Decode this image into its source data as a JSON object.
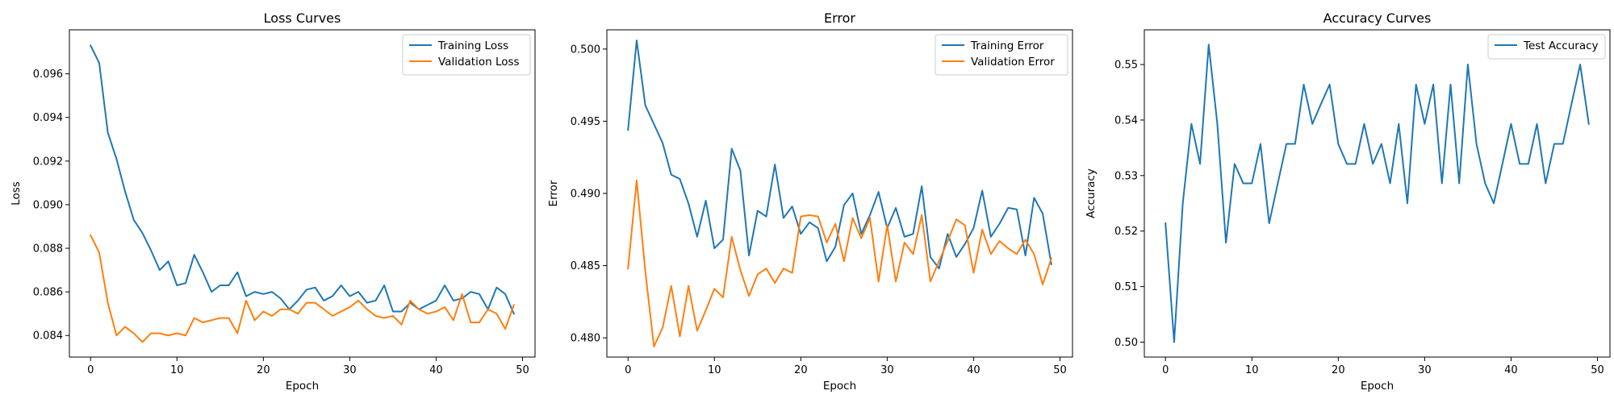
{
  "colors": {
    "blue": "#1f77b4",
    "orange": "#ff7f0e"
  },
  "chart_data": [
    {
      "type": "line",
      "title": "Loss Curves",
      "xlabel": "Epoch",
      "ylabel": "Loss",
      "xlim": [
        -2.45,
        51.45
      ],
      "ylim": [
        0.08301,
        0.09802
      ],
      "xticks": [
        0,
        10,
        20,
        30,
        40,
        50
      ],
      "xtick_labels": [
        "0",
        "10",
        "20",
        "30",
        "40",
        "50"
      ],
      "yticks": [
        0.084,
        0.086,
        0.088,
        0.09,
        0.092,
        0.094,
        0.096
      ],
      "ytick_labels": [
        "0.084",
        "0.086",
        "0.088",
        "0.090",
        "0.092",
        "0.094",
        "0.096"
      ],
      "legend_position": "upper right",
      "grid": false,
      "x": [
        0,
        1,
        2,
        3,
        4,
        5,
        6,
        7,
        8,
        9,
        10,
        11,
        12,
        13,
        14,
        15,
        16,
        17,
        18,
        19,
        20,
        21,
        22,
        23,
        24,
        25,
        26,
        27,
        28,
        29,
        30,
        31,
        32,
        33,
        34,
        35,
        36,
        37,
        38,
        39,
        40,
        41,
        42,
        43,
        44,
        45,
        46,
        47,
        48,
        49
      ],
      "series": [
        {
          "name": "Training Loss",
          "color": "#1f77b4",
          "values": [
            0.0973,
            0.0965,
            0.0933,
            0.0921,
            0.0906,
            0.0893,
            0.0887,
            0.0879,
            0.087,
            0.0874,
            0.0863,
            0.0864,
            0.0877,
            0.0869,
            0.086,
            0.0863,
            0.0863,
            0.0869,
            0.0858,
            0.086,
            0.0859,
            0.086,
            0.0857,
            0.0852,
            0.0856,
            0.0861,
            0.0862,
            0.0856,
            0.0858,
            0.0863,
            0.0858,
            0.086,
            0.0855,
            0.0856,
            0.0863,
            0.0851,
            0.0851,
            0.0855,
            0.0852,
            0.0854,
            0.0856,
            0.0863,
            0.0856,
            0.0857,
            0.086,
            0.0859,
            0.0852,
            0.0862,
            0.0859,
            0.085
          ]
        },
        {
          "name": "Validation Loss",
          "color": "#ff7f0e",
          "values": [
            0.0886,
            0.0878,
            0.0855,
            0.084,
            0.0844,
            0.0841,
            0.0837,
            0.0841,
            0.0841,
            0.084,
            0.0841,
            0.084,
            0.0848,
            0.0846,
            0.0847,
            0.0848,
            0.0848,
            0.0841,
            0.0856,
            0.0847,
            0.0851,
            0.0849,
            0.0852,
            0.0852,
            0.085,
            0.0855,
            0.0855,
            0.0852,
            0.0849,
            0.0851,
            0.0853,
            0.0856,
            0.0852,
            0.0849,
            0.0848,
            0.0849,
            0.0845,
            0.0856,
            0.0852,
            0.085,
            0.0851,
            0.0853,
            0.0847,
            0.0859,
            0.0846,
            0.0846,
            0.0852,
            0.085,
            0.0843,
            0.0854
          ]
        }
      ]
    },
    {
      "type": "line",
      "title": "Error",
      "xlabel": "Epoch",
      "ylabel": "Error",
      "xlim": [
        -2.45,
        51.45
      ],
      "ylim": [
        0.47867,
        0.50133
      ],
      "xticks": [
        0,
        10,
        20,
        30,
        40,
        50
      ],
      "xtick_labels": [
        "0",
        "10",
        "20",
        "30",
        "40",
        "50"
      ],
      "yticks": [
        0.48,
        0.485,
        0.49,
        0.495,
        0.5
      ],
      "ytick_labels": [
        "0.480",
        "0.485",
        "0.490",
        "0.495",
        "0.500"
      ],
      "legend_position": "upper right",
      "grid": false,
      "x": [
        0,
        1,
        2,
        3,
        4,
        5,
        6,
        7,
        8,
        9,
        10,
        11,
        12,
        13,
        14,
        15,
        16,
        17,
        18,
        19,
        20,
        21,
        22,
        23,
        24,
        25,
        26,
        27,
        28,
        29,
        30,
        31,
        32,
        33,
        34,
        35,
        36,
        37,
        38,
        39,
        40,
        41,
        42,
        43,
        44,
        45,
        46,
        47,
        48,
        49
      ],
      "series": [
        {
          "name": "Training Error",
          "color": "#1f77b4",
          "values": [
            0.4944,
            0.5006,
            0.4961,
            0.4948,
            0.4935,
            0.4913,
            0.491,
            0.4893,
            0.487,
            0.4895,
            0.4862,
            0.4868,
            0.4931,
            0.4916,
            0.4857,
            0.4888,
            0.4884,
            0.492,
            0.4883,
            0.4891,
            0.4872,
            0.488,
            0.4876,
            0.4853,
            0.4863,
            0.4892,
            0.49,
            0.4872,
            0.4885,
            0.4901,
            0.4876,
            0.489,
            0.487,
            0.4872,
            0.4905,
            0.4856,
            0.4848,
            0.4872,
            0.4856,
            0.4865,
            0.4876,
            0.4902,
            0.487,
            0.4879,
            0.489,
            0.4889,
            0.4857,
            0.4897,
            0.4886,
            0.4851
          ]
        },
        {
          "name": "Validation Error",
          "color": "#ff7f0e",
          "values": [
            0.4848,
            0.4909,
            0.4846,
            0.4794,
            0.4807,
            0.4836,
            0.4801,
            0.4836,
            0.4805,
            0.4819,
            0.4834,
            0.4828,
            0.487,
            0.4847,
            0.4829,
            0.4844,
            0.4848,
            0.4838,
            0.4848,
            0.4845,
            0.4884,
            0.4885,
            0.4884,
            0.4866,
            0.4879,
            0.4853,
            0.4883,
            0.4869,
            0.4883,
            0.4839,
            0.4878,
            0.4839,
            0.4866,
            0.4858,
            0.4885,
            0.4839,
            0.4853,
            0.4867,
            0.4882,
            0.4878,
            0.4845,
            0.4875,
            0.4858,
            0.4867,
            0.4862,
            0.4858,
            0.4868,
            0.4858,
            0.4837,
            0.4855
          ]
        }
      ]
    },
    {
      "type": "line",
      "title": "Accuracy Curves",
      "xlabel": "Epoch",
      "ylabel": "Accuracy",
      "xlim": [
        -2.45,
        51.45
      ],
      "ylim": [
        0.49731,
        0.55625
      ],
      "xticks": [
        0,
        10,
        20,
        30,
        40,
        50
      ],
      "xtick_labels": [
        "0",
        "10",
        "20",
        "30",
        "40",
        "50"
      ],
      "yticks": [
        0.5,
        0.51,
        0.52,
        0.53,
        0.54,
        0.55
      ],
      "ytick_labels": [
        "0.50",
        "0.51",
        "0.52",
        "0.53",
        "0.54",
        "0.55"
      ],
      "legend_position": "upper right",
      "grid": false,
      "x": [
        0,
        1,
        2,
        3,
        4,
        5,
        6,
        7,
        8,
        9,
        10,
        11,
        12,
        13,
        14,
        15,
        16,
        17,
        18,
        19,
        20,
        21,
        22,
        23,
        24,
        25,
        26,
        27,
        28,
        29,
        30,
        31,
        32,
        33,
        34,
        35,
        36,
        37,
        38,
        39,
        40,
        41,
        42,
        43,
        44,
        45,
        46,
        47,
        48,
        49
      ],
      "series": [
        {
          "name": "Test Accuracy",
          "color": "#1f77b4",
          "values": [
            0.5214,
            0.5,
            0.525,
            0.5393,
            0.5321,
            0.5536,
            0.5393,
            0.5179,
            0.5321,
            0.5286,
            0.5286,
            0.5357,
            0.5214,
            0.5286,
            0.5357,
            0.5357,
            0.5464,
            0.5393,
            0.5429,
            0.5464,
            0.5357,
            0.5321,
            0.5321,
            0.5393,
            0.5321,
            0.5357,
            0.5286,
            0.5393,
            0.525,
            0.5464,
            0.5393,
            0.5464,
            0.5286,
            0.5464,
            0.5286,
            0.55,
            0.5357,
            0.5286,
            0.525,
            0.5321,
            0.5393,
            0.5321,
            0.5321,
            0.5393,
            0.5286,
            0.5357,
            0.5357,
            0.5429,
            0.55,
            0.5393
          ]
        }
      ]
    }
  ]
}
